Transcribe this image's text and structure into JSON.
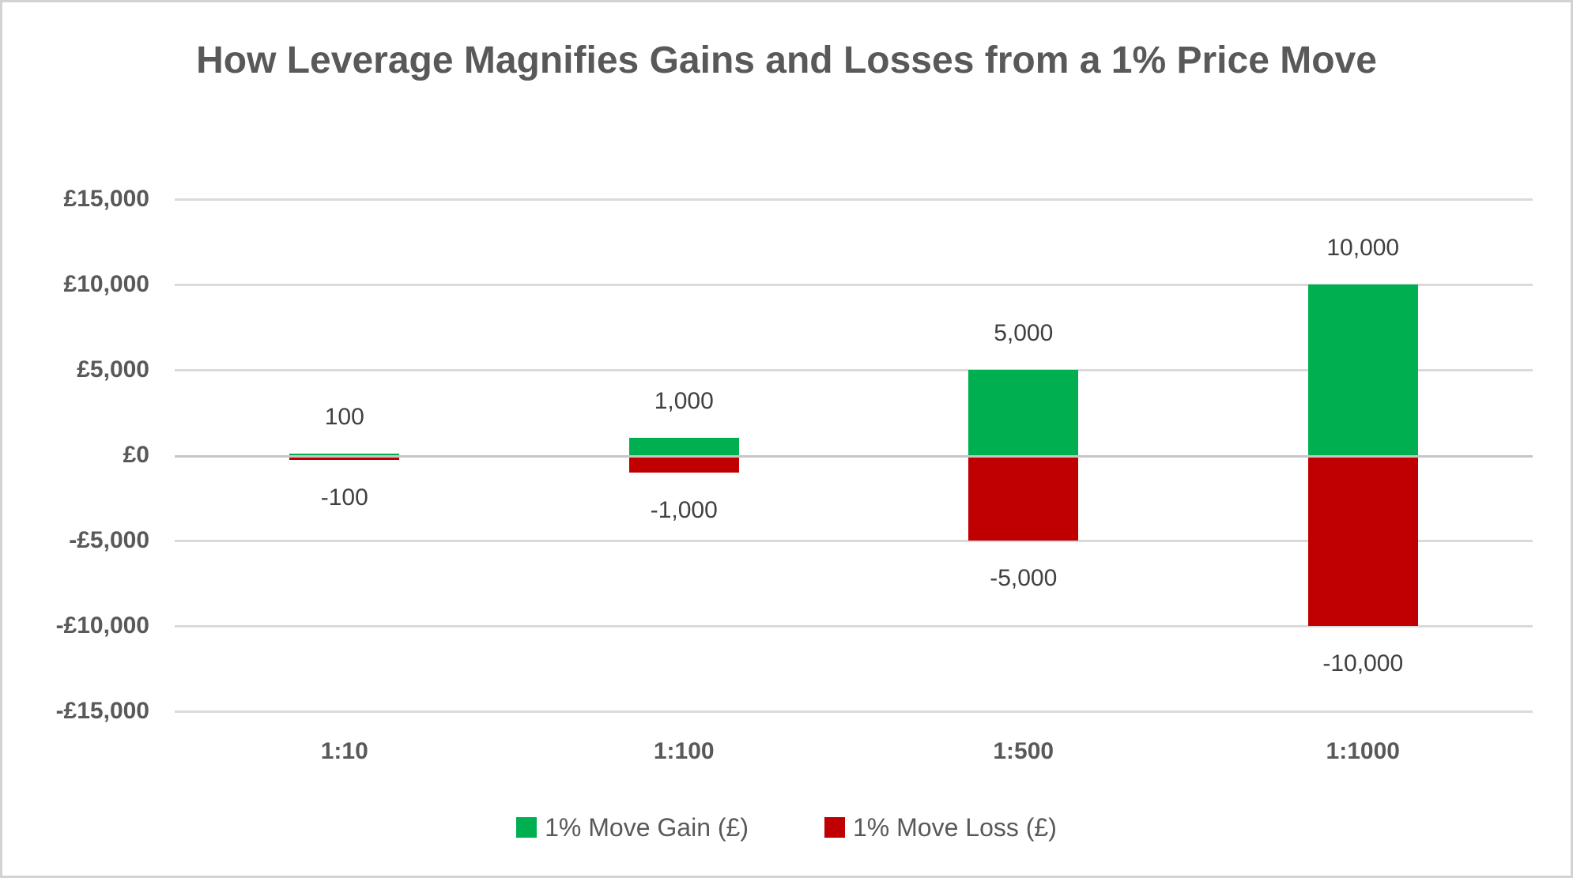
{
  "chart_data": {
    "type": "bar",
    "title": "How Leverage Magnifies Gains and Losses from a 1% Price Move",
    "categories": [
      "1:10",
      "1:100",
      "1:500",
      "1:1000"
    ],
    "series": [
      {
        "name": "1% Move Gain (£)",
        "color": "#00B050",
        "values": [
          100,
          1000,
          5000,
          10000
        ],
        "labels": [
          "100",
          "1,000",
          "5,000",
          "10,000"
        ]
      },
      {
        "name": "1% Move Loss (£)",
        "color": "#C00000",
        "values": [
          -100,
          -1000,
          -5000,
          -10000
        ],
        "labels": [
          "-100",
          "-1,000",
          "-5,000",
          "-10,000"
        ]
      }
    ],
    "xlabel": "",
    "ylabel": "",
    "y_axis": {
      "min": -15000,
      "max": 15000,
      "ticks": [
        15000,
        10000,
        5000,
        0,
        -5000,
        -10000,
        -15000
      ],
      "tick_labels": [
        "£15,000",
        "£10,000",
        "£5,000",
        "£0",
        "-£5,000",
        "-£10,000",
        "-£15,000"
      ]
    },
    "grid": true,
    "legend_position": "bottom",
    "colors": {
      "gain": "#00B050",
      "loss": "#C00000",
      "gridline": "#dadada",
      "axis_line": "#c6c6c6",
      "title_text": "#595959",
      "axis_text": "#595959",
      "data_label_text": "#404040",
      "background": "#ffffff"
    }
  }
}
